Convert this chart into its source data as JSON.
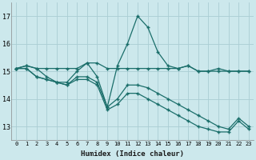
{
  "xlabel": "Humidex (Indice chaleur)",
  "ylabel": "",
  "background_color": "#cce8ec",
  "grid_color": "#aacdd4",
  "line_color": "#1a6e6a",
  "xlim": [
    -0.5,
    23.5
  ],
  "ylim": [
    12.5,
    17.5
  ],
  "yticks": [
    13,
    14,
    15,
    16,
    17
  ],
  "xticks": [
    0,
    1,
    2,
    3,
    4,
    5,
    6,
    7,
    8,
    9,
    10,
    11,
    12,
    13,
    14,
    15,
    16,
    17,
    18,
    19,
    20,
    21,
    22,
    23
  ],
  "series": [
    [
      15.1,
      15.2,
      15.1,
      15.1,
      15.1,
      15.1,
      15.1,
      15.3,
      15.3,
      15.1,
      15.1,
      15.1,
      15.1,
      15.1,
      15.1,
      15.1,
      15.1,
      15.2,
      15.0,
      15.0,
      15.0,
      15.0,
      15.0,
      15.0
    ],
    [
      15.1,
      15.2,
      15.1,
      14.8,
      14.6,
      14.6,
      15.0,
      15.3,
      14.8,
      13.7,
      15.2,
      16.0,
      17.0,
      16.6,
      15.7,
      15.2,
      15.1,
      15.2,
      15.0,
      15.0,
      15.1,
      15.0,
      15.0,
      15.0
    ],
    [
      15.1,
      15.1,
      14.8,
      14.7,
      14.6,
      14.5,
      14.8,
      14.8,
      14.6,
      13.7,
      14.0,
      14.5,
      14.5,
      14.4,
      14.2,
      14.0,
      13.8,
      13.6,
      13.4,
      13.2,
      13.0,
      12.9,
      13.3,
      13.0
    ],
    [
      15.1,
      15.1,
      14.8,
      14.7,
      14.6,
      14.5,
      14.7,
      14.7,
      14.5,
      13.6,
      13.8,
      14.2,
      14.2,
      14.0,
      13.8,
      13.6,
      13.4,
      13.2,
      13.0,
      12.9,
      12.8,
      12.8,
      13.2,
      12.9
    ]
  ]
}
